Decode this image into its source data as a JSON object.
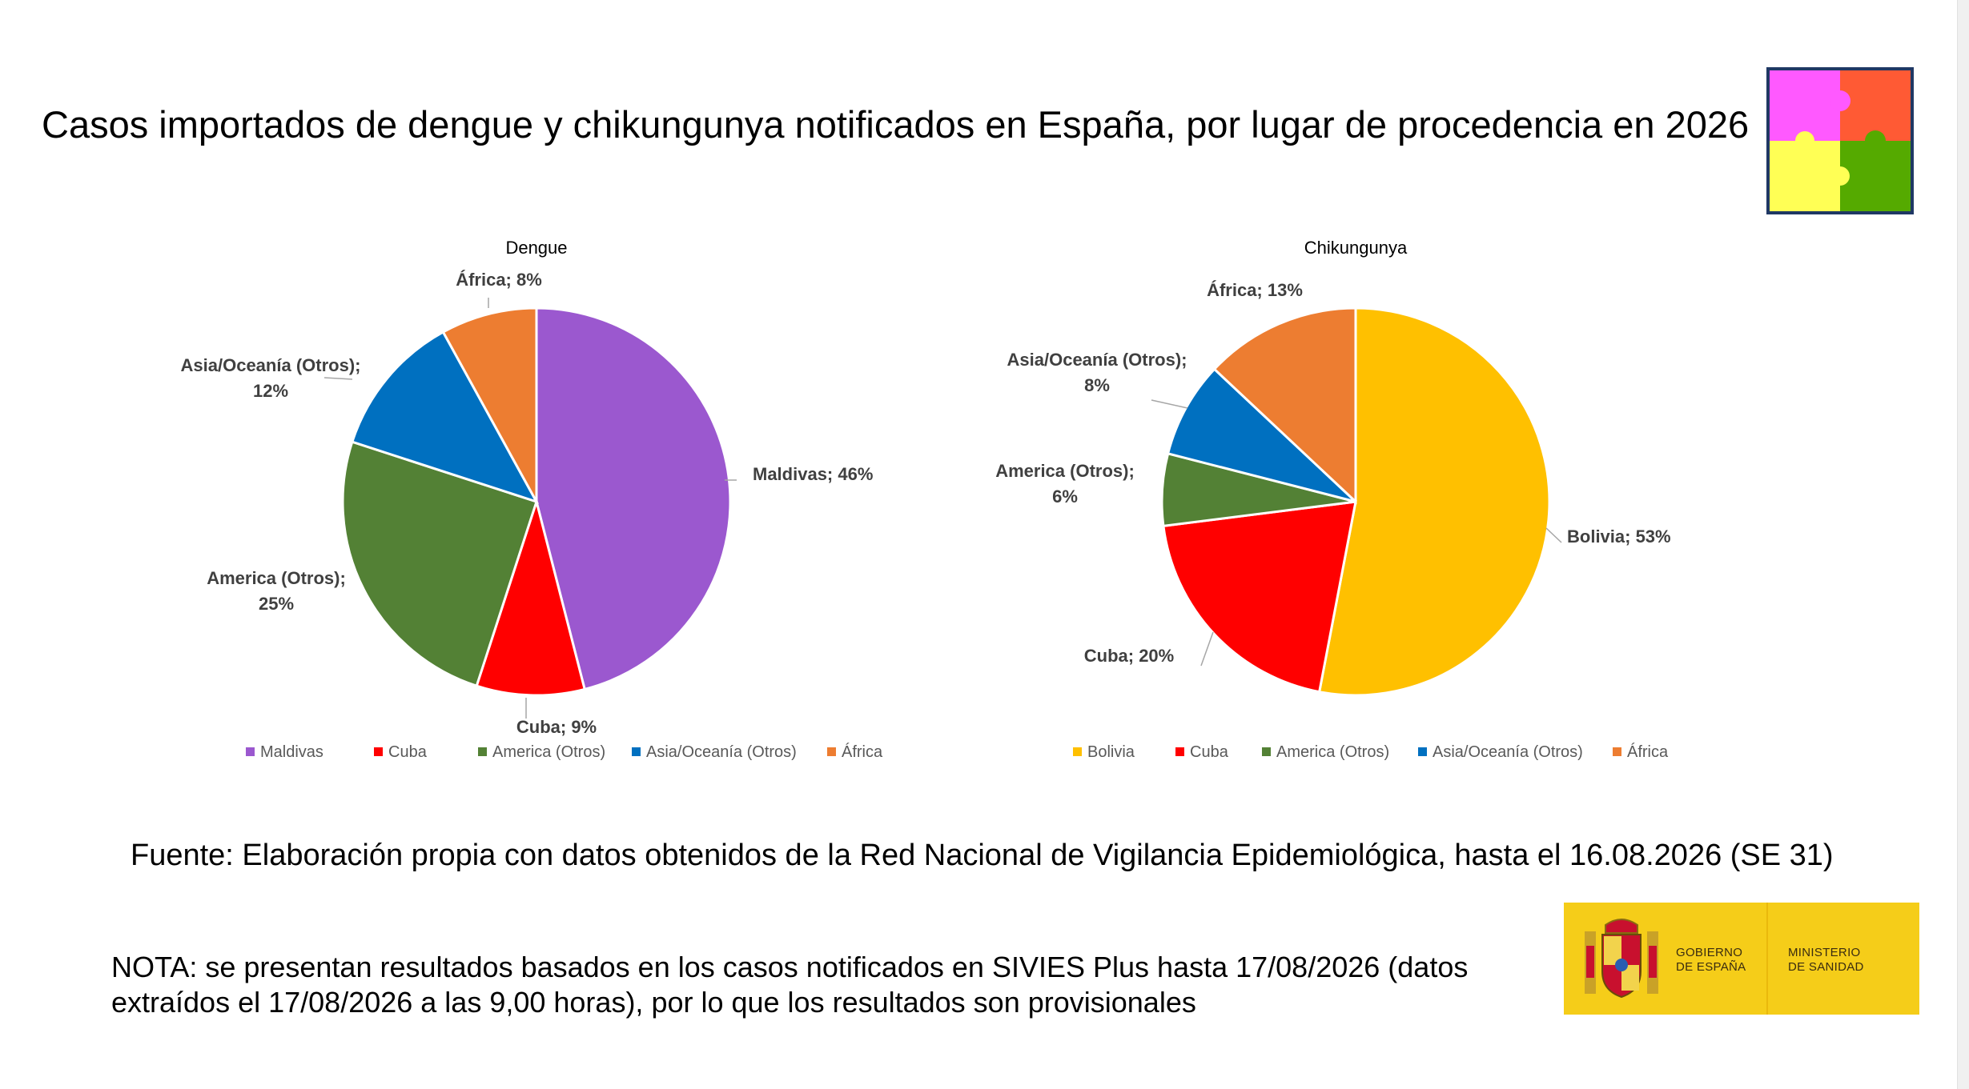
{
  "title": "Casos importados de dengue y chikungunya notificados en España, por lugar de procedencia en 2026",
  "source": "Fuente: Elaboración propia con datos obtenidos de la Red Nacional de Vigilancia Epidemiológica, hasta el 16.08.2026 (SE 31)",
  "note": "NOTA: se presentan resultados basados en los casos notificados en SIVIES Plus hasta 17/08/2026 (datos extraídos el 17/08/2026 a las 9,00 horas), por lo que los resultados son provisionales",
  "logo": {
    "gobierno": [
      "GOBIERNO",
      "DE ESPAÑA"
    ],
    "ministerio": [
      "MINISTERIO",
      "DE SANIDAD"
    ]
  },
  "puzzle_colors": [
    "#ff59ff",
    "#ff5a34",
    "#ffff55",
    "#55aa00"
  ],
  "chart_data": [
    {
      "type": "pie",
      "title": "Dengue",
      "categories": [
        "Maldivas",
        "Cuba",
        "America (Otros)",
        "Asia/Oceanía (Otros)",
        "África"
      ],
      "values": [
        46,
        9,
        25,
        12,
        8
      ],
      "data_labels": [
        "Maldivas; 46%",
        "Cuba; 9%",
        "America (Otros); 25%",
        "Asia/Oceanía (Otros); 12%",
        "África; 8%"
      ],
      "colors": [
        "#9b58cf",
        "#ff0000",
        "#538135",
        "#0070c0",
        "#ed7d31"
      ],
      "legend_position": "bottom"
    },
    {
      "type": "pie",
      "title": "Chikungunya",
      "categories": [
        "Bolivia",
        "Cuba",
        "America (Otros)",
        "Asia/Oceanía (Otros)",
        "África"
      ],
      "values": [
        53,
        20,
        6,
        8,
        13
      ],
      "data_labels": [
        "Bolivia; 53%",
        "Cuba; 20%",
        "America (Otros); 6%",
        "Asia/Oceanía (Otros); 8%",
        "África; 13%"
      ],
      "colors": [
        "#ffc000",
        "#ff0000",
        "#538135",
        "#0070c0",
        "#ed7d31"
      ],
      "legend_position": "bottom"
    }
  ]
}
